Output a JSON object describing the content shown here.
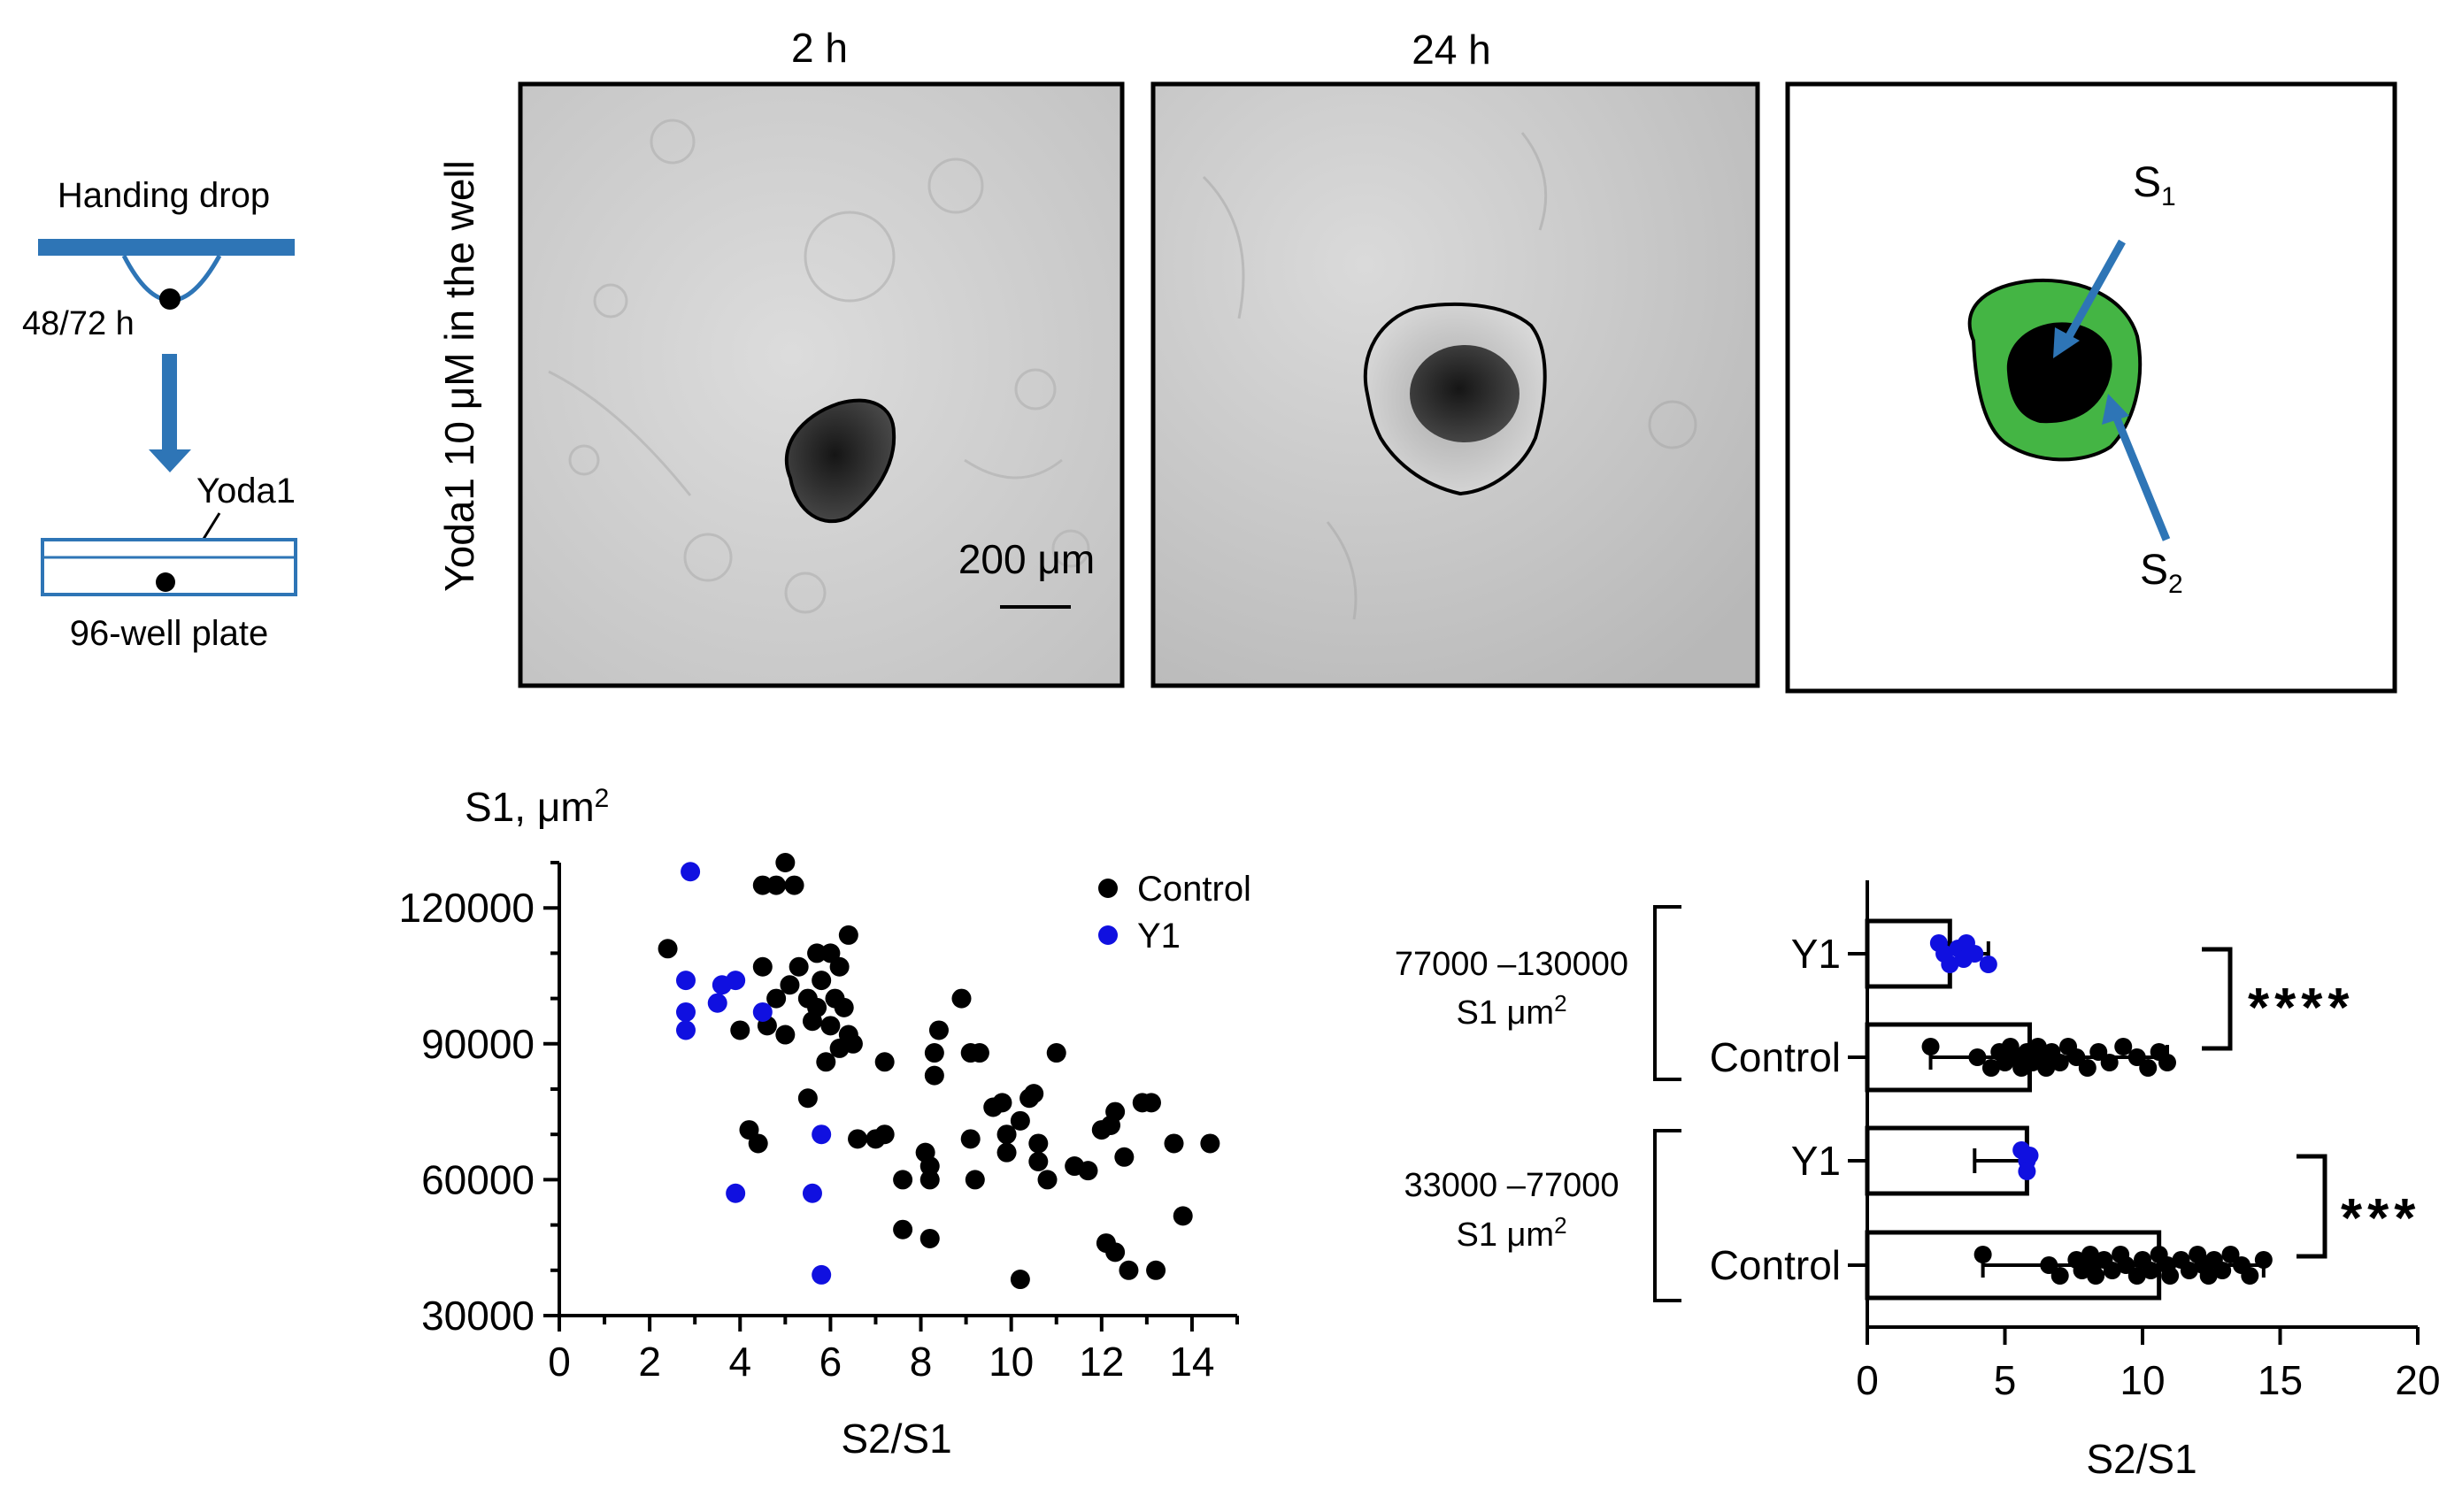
{
  "schematic": {
    "hanging_drop_label": "Handing drop",
    "time_label": "48/72 h",
    "yoda_label": "Yoda1",
    "plate_label": "96-well plate"
  },
  "micrographs": {
    "row_label": "Yoda1 10 μM in the well",
    "panel_2h_title": "2 h",
    "panel_24h_title": "24 h",
    "scale_bar_label": "200 μm",
    "s1_label": "S",
    "s1_sub": "1",
    "s2_label": "S",
    "s2_sub": "2"
  },
  "colors": {
    "control": "#000000",
    "y1": "#1010e0",
    "arrow": "#2e75b6",
    "s2_fill": "#44b544"
  },
  "chart_data": [
    {
      "type": "scatter",
      "ylabel": "S1, μm",
      "ylabel_sup": "2",
      "xlabel": "S2/S1",
      "xlim": [
        0,
        15
      ],
      "ylim": [
        30000,
        130000
      ],
      "x_ticks": [
        "0",
        "2",
        "4",
        "6",
        "8",
        "10",
        "12",
        "14"
      ],
      "y_ticks": [
        "30000",
        "60000",
        "90000",
        "120000"
      ],
      "legend": [
        "Control",
        "Y1"
      ],
      "legend_position": "top-right",
      "series": [
        {
          "name": "Control",
          "points": [
            [
              2.4,
              111000
            ],
            [
              4.0,
              93000
            ],
            [
              4.5,
              125000
            ],
            [
              4.8,
              125000
            ],
            [
              5.0,
              130000
            ],
            [
              5.2,
              125000
            ],
            [
              4.5,
              107000
            ],
            [
              4.6,
              94000
            ],
            [
              4.8,
              100000
            ],
            [
              5.0,
              92000
            ],
            [
              5.1,
              103000
            ],
            [
              5.3,
              107000
            ],
            [
              5.5,
              100000
            ],
            [
              5.6,
              95000
            ],
            [
              5.7,
              110000
            ],
            [
              5.8,
              104000
            ],
            [
              6.0,
              110000
            ],
            [
              6.1,
              100000
            ],
            [
              6.2,
              107000
            ],
            [
              6.3,
              98000
            ],
            [
              6.4,
              114000
            ],
            [
              6.4,
              92000
            ],
            [
              5.9,
              86000
            ],
            [
              6.2,
              89000
            ],
            [
              6.5,
              90000
            ],
            [
              5.5,
              78000
            ],
            [
              4.2,
              71000
            ],
            [
              4.4,
              68000
            ],
            [
              5.7,
              98000
            ],
            [
              6.0,
              94000
            ],
            [
              6.6,
              69000
            ],
            [
              7.2,
              86000
            ],
            [
              7.2,
              70000
            ],
            [
              7.0,
              69000
            ],
            [
              7.6,
              60000
            ],
            [
              7.6,
              49000
            ],
            [
              8.1,
              66000
            ],
            [
              8.2,
              63000
            ],
            [
              8.2,
              60000
            ],
            [
              8.2,
              47000
            ],
            [
              8.3,
              88000
            ],
            [
              8.4,
              93000
            ],
            [
              8.3,
              83000
            ],
            [
              8.9,
              100000
            ],
            [
              9.1,
              88000
            ],
            [
              9.3,
              88000
            ],
            [
              9.1,
              69000
            ],
            [
              9.2,
              60000
            ],
            [
              9.6,
              76000
            ],
            [
              9.8,
              77000
            ],
            [
              9.9,
              70000
            ],
            [
              9.9,
              66000
            ],
            [
              10.2,
              73000
            ],
            [
              10.4,
              78000
            ],
            [
              10.5,
              79000
            ],
            [
              10.6,
              68000
            ],
            [
              10.6,
              64000
            ],
            [
              10.8,
              60000
            ],
            [
              11.0,
              88000
            ],
            [
              10.2,
              38000
            ],
            [
              11.4,
              63000
            ],
            [
              11.7,
              62000
            ],
            [
              12.0,
              71000
            ],
            [
              12.2,
              72000
            ],
            [
              12.3,
              75000
            ],
            [
              12.5,
              65000
            ],
            [
              12.1,
              46000
            ],
            [
              12.3,
              44000
            ],
            [
              12.6,
              40000
            ],
            [
              12.9,
              77000
            ],
            [
              13.1,
              77000
            ],
            [
              13.2,
              40000
            ],
            [
              13.6,
              68000
            ],
            [
              13.8,
              52000
            ],
            [
              14.4,
              68000
            ]
          ]
        },
        {
          "name": "Y1",
          "points": [
            [
              2.9,
              128000
            ],
            [
              2.8,
              104000
            ],
            [
              2.8,
              97000
            ],
            [
              2.8,
              93000
            ],
            [
              3.5,
              99000
            ],
            [
              3.6,
              103000
            ],
            [
              3.9,
              104000
            ],
            [
              4.5,
              97000
            ],
            [
              3.9,
              57000
            ],
            [
              5.6,
              57000
            ],
            [
              5.8,
              70000
            ],
            [
              5.8,
              39000
            ]
          ]
        }
      ]
    },
    {
      "type": "bar",
      "orientation": "horizontal",
      "xlabel": "S2/S1",
      "xlim": [
        0,
        20
      ],
      "x_ticks": [
        "0",
        "5",
        "10",
        "15",
        "20"
      ],
      "groups": [
        {
          "range_label": "77000 –130000",
          "unit_label": "S1 μm",
          "unit_sup": "2",
          "significance": "****",
          "bars": [
            {
              "name": "Y1",
              "mean": 3.0,
              "sd": [
                2.9,
                4.4
              ],
              "points": [
                2.6,
                2.8,
                3.0,
                3.3,
                3.5,
                3.6,
                3.9,
                4.4
              ]
            },
            {
              "name": "Control",
              "mean": 5.9,
              "sd": [
                2.3,
                10.9
              ],
              "points": [
                2.3,
                4.0,
                4.5,
                4.8,
                5.0,
                5.2,
                5.4,
                5.6,
                5.8,
                6.0,
                6.2,
                6.3,
                6.5,
                6.7,
                7.0,
                7.3,
                7.6,
                8.0,
                8.4,
                8.8,
                9.3,
                9.8,
                10.2,
                10.6,
                10.9
              ]
            }
          ]
        },
        {
          "range_label": "33000 –77000",
          "unit_label": "S1 μm",
          "unit_sup": "2",
          "significance": "***",
          "bars": [
            {
              "name": "Y1",
              "mean": 5.8,
              "sd": [
                3.9,
                5.9
              ],
              "points": [
                5.6,
                5.8,
                5.8,
                5.9
              ]
            },
            {
              "name": "Control",
              "mean": 10.6,
              "sd": [
                4.2,
                14.4
              ],
              "points": [
                4.2,
                6.6,
                7.0,
                7.6,
                7.8,
                8.1,
                8.2,
                8.3,
                8.6,
                8.9,
                9.2,
                9.4,
                9.8,
                10.0,
                10.3,
                10.6,
                10.9,
                11.0,
                11.4,
                11.7,
                12.0,
                12.2,
                12.4,
                12.6,
                12.9,
                13.2,
                13.6,
                13.9,
                14.4
              ]
            }
          ]
        }
      ]
    }
  ]
}
